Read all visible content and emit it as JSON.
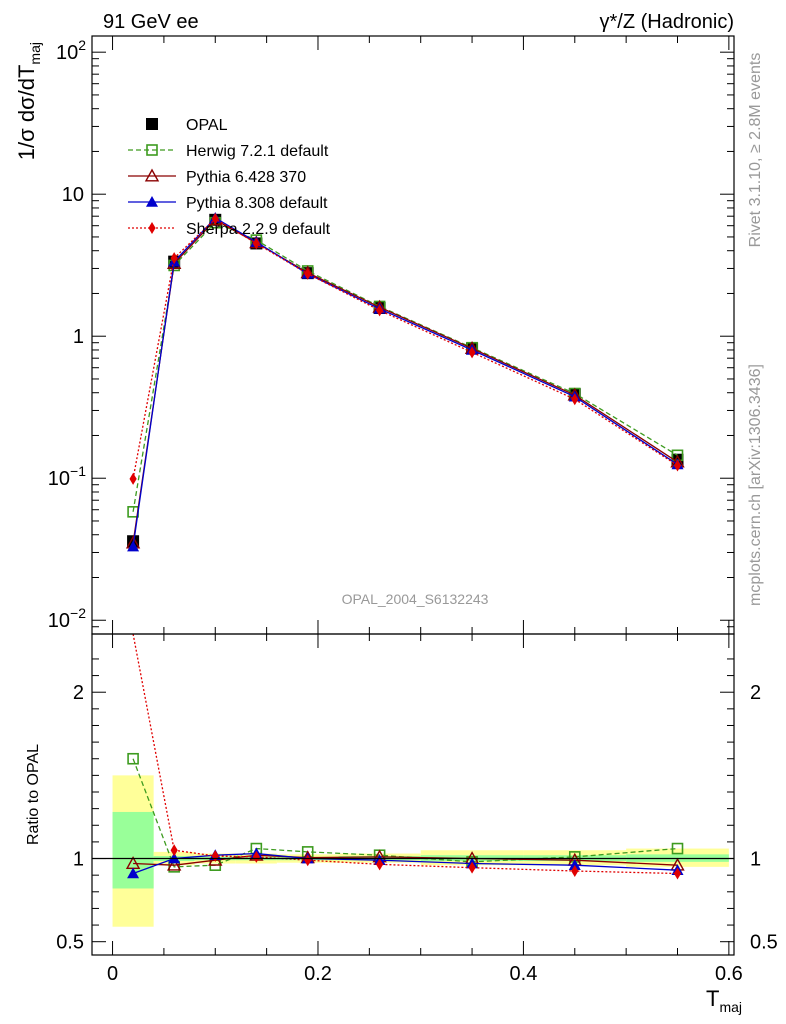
{
  "header": {
    "left": "91 GeV ee",
    "right": "γ*/Z (Hadronic)"
  },
  "side_text": {
    "rivet": "Rivet 3.1.10, ≥ 2.8M events",
    "source": "mcplots.cern.ch [arXiv:1306.3436]"
  },
  "watermark": "OPAL_2004_S6132243",
  "chart_data": [
    {
      "type": "line",
      "panel": "main",
      "ylabel": "1/σ dσ/dT",
      "ylabel_sub": "maj",
      "yscale": "log",
      "ylim": [
        0.008,
        130
      ],
      "xlim": [
        -0.02,
        0.605
      ],
      "yticks": [
        {
          "v": 0.01,
          "base": "10",
          "exp": "−2"
        },
        {
          "v": 0.1,
          "base": "10",
          "exp": "−1"
        },
        {
          "v": 1,
          "base": "1",
          "exp": ""
        },
        {
          "v": 10,
          "base": "10",
          "exp": ""
        },
        {
          "v": 100,
          "base": "10",
          "exp": "2"
        }
      ],
      "x": [
        0.02,
        0.06,
        0.1,
        0.14,
        0.19,
        0.26,
        0.35,
        0.45,
        0.55
      ],
      "series": [
        {
          "name": "OPAL",
          "color": "#000000",
          "marker": "square-filled",
          "line": "none",
          "values": [
            0.036,
            3.35,
            6.6,
            4.5,
            2.78,
            1.58,
            0.82,
            0.39,
            0.135
          ]
        },
        {
          "name": "Herwig 7.2.1 default",
          "color": "#3d9b1f",
          "marker": "square-open",
          "line": "dashed",
          "values": [
            0.058,
            3.15,
            6.3,
            4.75,
            2.88,
            1.62,
            0.83,
            0.395,
            0.145
          ]
        },
        {
          "name": "Pythia 6.428 370",
          "color": "#8b0000",
          "marker": "triangle-open",
          "line": "solid",
          "values": [
            0.035,
            3.25,
            6.6,
            4.55,
            2.8,
            1.6,
            0.82,
            0.385,
            0.13
          ]
        },
        {
          "name": "Pythia 8.308 default",
          "color": "#0000cc",
          "marker": "triangle-filled",
          "line": "solid",
          "values": [
            0.033,
            3.35,
            6.8,
            4.6,
            2.75,
            1.56,
            0.8,
            0.375,
            0.125
          ]
        },
        {
          "name": "Sherpa 2.2.9 default",
          "color": "#e00000",
          "marker": "diamond-filled",
          "line": "dotted",
          "values": [
            0.099,
            3.55,
            6.7,
            4.5,
            2.75,
            1.52,
            0.77,
            0.36,
            0.123
          ]
        }
      ]
    },
    {
      "type": "line",
      "panel": "ratio",
      "ylabel": "Ratio to OPAL",
      "xlabel": "T",
      "xlabel_sub": "maj",
      "ylim": [
        0.42,
        2.35
      ],
      "xlim": [
        -0.02,
        0.605
      ],
      "yticks": [
        0.5,
        1,
        2
      ],
      "ytick_labels": [
        "0.5",
        "1",
        "2"
      ],
      "xticks": [
        0,
        0.2,
        0.4,
        0.6
      ],
      "xtick_labels": [
        "0",
        "0.2",
        "0.4",
        "0.6"
      ],
      "bands": [
        {
          "x0": 0.0,
          "x1": 0.04,
          "yellow": [
            0.59,
            1.5
          ],
          "green": [
            0.82,
            1.28
          ]
        },
        {
          "x0": 0.04,
          "x1": 0.08,
          "yellow": [
            0.96,
            1.04
          ],
          "green": [
            0.985,
            1.015
          ]
        },
        {
          "x0": 0.08,
          "x1": 0.12,
          "yellow": [
            0.97,
            1.03
          ],
          "green": [
            0.99,
            1.01
          ]
        },
        {
          "x0": 0.12,
          "x1": 0.16,
          "yellow": [
            0.97,
            1.03
          ],
          "green": [
            0.99,
            1.01
          ]
        },
        {
          "x0": 0.16,
          "x1": 0.22,
          "yellow": [
            0.975,
            1.025
          ],
          "green": [
            0.99,
            1.01
          ]
        },
        {
          "x0": 0.22,
          "x1": 0.3,
          "yellow": [
            0.975,
            1.03
          ],
          "green": [
            0.99,
            1.015
          ]
        },
        {
          "x0": 0.3,
          "x1": 0.4,
          "yellow": [
            0.96,
            1.05
          ],
          "green": [
            0.985,
            1.02
          ]
        },
        {
          "x0": 0.4,
          "x1": 0.5,
          "yellow": [
            0.96,
            1.05
          ],
          "green": [
            0.985,
            1.02
          ]
        },
        {
          "x0": 0.5,
          "x1": 0.6,
          "yellow": [
            0.95,
            1.06
          ],
          "green": [
            0.98,
            1.025
          ]
        }
      ],
      "x": [
        0.02,
        0.06,
        0.1,
        0.14,
        0.19,
        0.26,
        0.35,
        0.45,
        0.55
      ],
      "series": [
        {
          "name": "Herwig 7.2.1 default",
          "color": "#3d9b1f",
          "marker": "square-open",
          "line": "dashed",
          "values": [
            1.6,
            0.95,
            0.96,
            1.06,
            1.04,
            1.02,
            0.98,
            1.01,
            1.06
          ]
        },
        {
          "name": "Pythia 6.428 370",
          "color": "#8b0000",
          "marker": "triangle-open",
          "line": "solid",
          "values": [
            0.97,
            0.96,
            0.99,
            1.02,
            1.005,
            1.01,
            1.0,
            0.99,
            0.96
          ]
        },
        {
          "name": "Pythia 8.308 default",
          "color": "#0000cc",
          "marker": "triangle-filled",
          "line": "solid",
          "values": [
            0.91,
            1.0,
            1.02,
            1.03,
            1.0,
            0.99,
            0.97,
            0.96,
            0.93
          ]
        },
        {
          "name": "Sherpa 2.2.9 default",
          "color": "#e00000",
          "marker": "diamond-filled",
          "line": "dotted",
          "values": [
            2.7,
            1.05,
            1.015,
            1.01,
            0.99,
            0.965,
            0.945,
            0.925,
            0.91
          ]
        }
      ]
    }
  ]
}
